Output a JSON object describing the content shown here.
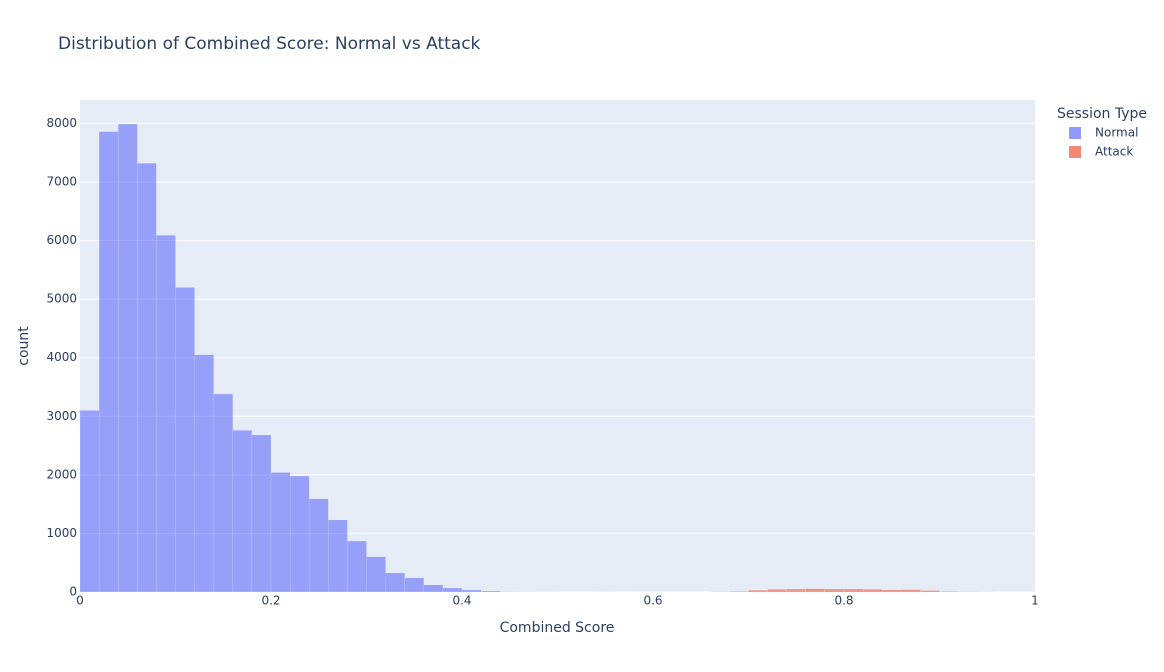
{
  "chart_data": {
    "type": "histogram",
    "title": "Distribution of Combined Score: Normal vs Attack",
    "x_label": "Combined Score",
    "y_label": "count",
    "legend_title": "Session Type",
    "legend_position": "right",
    "bins": [
      0,
      0.02,
      0.04,
      0.06,
      0.08,
      0.1,
      0.12,
      0.14,
      0.16,
      0.18,
      0.2,
      0.22,
      0.24,
      0.26,
      0.28,
      0.3,
      0.32,
      0.34,
      0.36,
      0.38,
      0.4,
      0.42,
      0.44,
      0.46,
      0.48,
      0.5,
      0.52,
      0.54,
      0.56,
      0.58,
      0.6,
      0.62,
      0.64,
      0.66,
      0.68,
      0.7,
      0.72,
      0.74,
      0.76,
      0.78,
      0.8,
      0.82,
      0.84,
      0.86,
      0.88,
      0.9,
      0.92,
      0.94,
      0.96,
      0.98,
      1
    ],
    "series": [
      {
        "name": "Normal",
        "color": "#636efa",
        "values": [
          3100,
          7860,
          7990,
          7320,
          6090,
          5200,
          4050,
          3380,
          2760,
          2680,
          2040,
          1980,
          1590,
          1230,
          870,
          600,
          325,
          240,
          120,
          68,
          34,
          17,
          5,
          3,
          2,
          1,
          1,
          2,
          1,
          0,
          0,
          0,
          0,
          0,
          0,
          0,
          0,
          0,
          0,
          0,
          0,
          0,
          0,
          0,
          0,
          0,
          0,
          0,
          0,
          0
        ]
      },
      {
        "name": "Attack",
        "color": "#EF553B",
        "values": [
          0,
          0,
          0,
          0,
          0,
          0,
          0,
          0,
          0,
          0,
          0,
          0,
          0,
          0,
          0,
          0,
          0,
          0,
          0,
          0,
          0,
          0,
          0,
          0,
          0,
          0,
          0,
          0,
          0,
          0,
          0,
          0,
          0,
          5,
          10,
          30,
          45,
          50,
          55,
          50,
          50,
          45,
          35,
          40,
          25,
          10,
          5,
          3,
          0,
          0
        ]
      }
    ],
    "opacity": 0.6,
    "xlim": [
      0,
      1
    ],
    "xticks": [
      0,
      0.2,
      0.4,
      0.6,
      0.8,
      1
    ],
    "ylim": [
      0,
      8400
    ],
    "yticks": [
      0,
      1000,
      2000,
      3000,
      4000,
      5000,
      6000,
      7000,
      8000
    ],
    "grid": true
  }
}
